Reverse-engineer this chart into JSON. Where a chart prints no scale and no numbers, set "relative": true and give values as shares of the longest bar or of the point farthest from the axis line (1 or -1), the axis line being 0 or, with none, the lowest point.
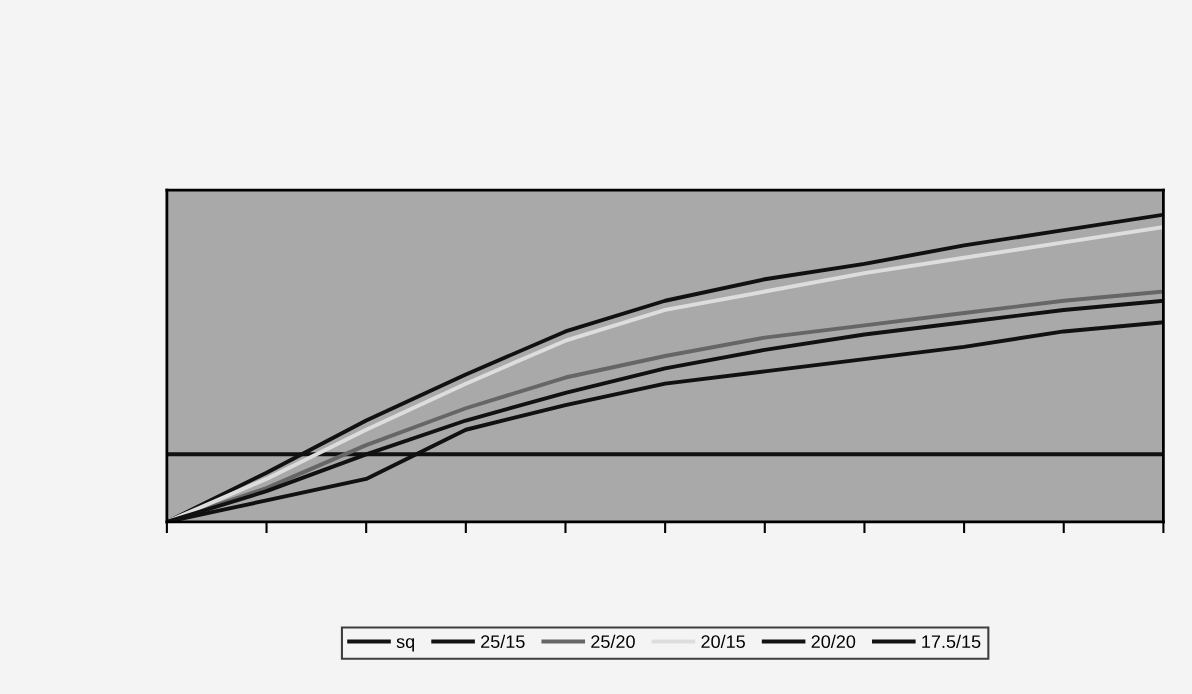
{
  "chart_data": {
    "type": "line",
    "relative": true,
    "categories": [
      null,
      null,
      null,
      null,
      null,
      null,
      null,
      null,
      null,
      null,
      null
    ],
    "series": [
      {
        "name": "sq",
        "color": "#111111",
        "values": [
          0.22,
          0.22,
          0.22,
          0.22,
          0.22,
          0.22,
          0.22,
          0.22,
          0.22,
          0.22,
          0.22
        ]
      },
      {
        "name": "25/15",
        "color": "#111111",
        "values": [
          0,
          0.16,
          0.33,
          0.48,
          0.62,
          0.72,
          0.79,
          0.84,
          0.9,
          0.95,
          1
        ]
      },
      {
        "name": "25/20",
        "color": "#666666",
        "values": [
          0,
          0.11,
          0.25,
          0.37,
          0.47,
          0.54,
          0.6,
          0.64,
          0.68,
          0.72,
          0.75
        ]
      },
      {
        "name": "20/15",
        "color": "#dddddd",
        "values": [
          0,
          0.14,
          0.3,
          0.45,
          0.59,
          0.69,
          0.75,
          0.81,
          0.86,
          0.91,
          0.96
        ]
      },
      {
        "name": "20/20",
        "color": "#111111",
        "values": [
          0,
          0.1,
          0.22,
          0.33,
          0.42,
          0.5,
          0.56,
          0.61,
          0.65,
          0.69,
          0.72
        ]
      },
      {
        "name": "17.5/15",
        "color": "#111111",
        "values": [
          0,
          0.07,
          0.14,
          0.3,
          0.38,
          0.45,
          0.49,
          0.53,
          0.57,
          0.62,
          0.65
        ]
      }
    ],
    "legend": "bottom",
    "grid": false,
    "marker": "none",
    "line_style": "solid"
  }
}
